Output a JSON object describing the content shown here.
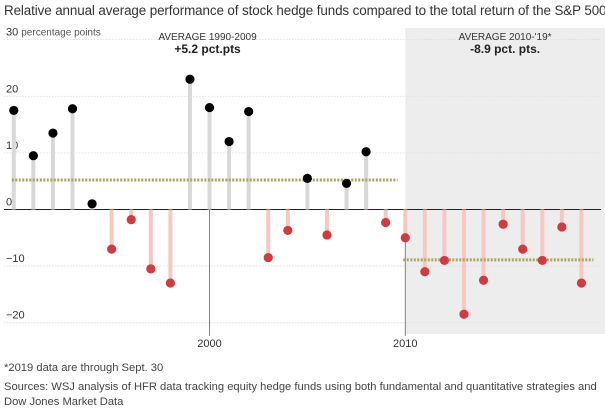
{
  "chart_data": {
    "type": "lollipop",
    "title": "Relative annual average performance of stock hedge funds compared to the total return of the S&P 500",
    "y_unit_label": "percentage points",
    "ylim": [
      -22,
      31
    ],
    "y_ticks": [
      30,
      20,
      10,
      0,
      -10,
      -20
    ],
    "xlim": [
      1989.5,
      2020
    ],
    "x_ticks": [
      2000,
      2010
    ],
    "years": [
      1990,
      1991,
      1992,
      1993,
      1994,
      1995,
      1996,
      1997,
      1998,
      1999,
      2000,
      2001,
      2002,
      2003,
      2004,
      2005,
      2006,
      2007,
      2008,
      2009,
      2010,
      2011,
      2012,
      2013,
      2014,
      2015,
      2016,
      2017,
      2018,
      2019
    ],
    "values": [
      17.5,
      9.5,
      13.5,
      17.8,
      1.0,
      -7.0,
      -1.8,
      -10.5,
      -13.0,
      23.0,
      18.0,
      12.0,
      17.3,
      -8.5,
      -3.7,
      5.5,
      -4.5,
      4.6,
      10.2,
      -2.3,
      -5.0,
      -11.0,
      -9.0,
      -18.5,
      -12.5,
      -2.6,
      -7.0,
      -9.0,
      -3.1,
      -13.0
    ],
    "averages": [
      {
        "label": "AVERAGE 1990-2009",
        "value_label": "+5.2 pct.pts",
        "value": 5.2,
        "from": 1990,
        "to": 2009
      },
      {
        "label": "AVERAGE 2010-'19*",
        "value_label": "-8.9 pct. pts.",
        "value": -8.9,
        "from": 2010,
        "to": 2019
      }
    ],
    "shaded_region": [
      2010,
      2020
    ],
    "colors": {
      "positive": "#000000",
      "negative": "#d13a3e",
      "positive_stem": "#d8d8d8",
      "negative_stem": "#f7c8bf",
      "average": "#a8a35e",
      "shade": "#ededed"
    }
  },
  "footnote": "*2019 data are through Sept. 30",
  "source": "Sources: WSJ analysis of HFR data tracking equity hedge funds using both fundamental and quantitative strategies and Dow Jones Market Data"
}
